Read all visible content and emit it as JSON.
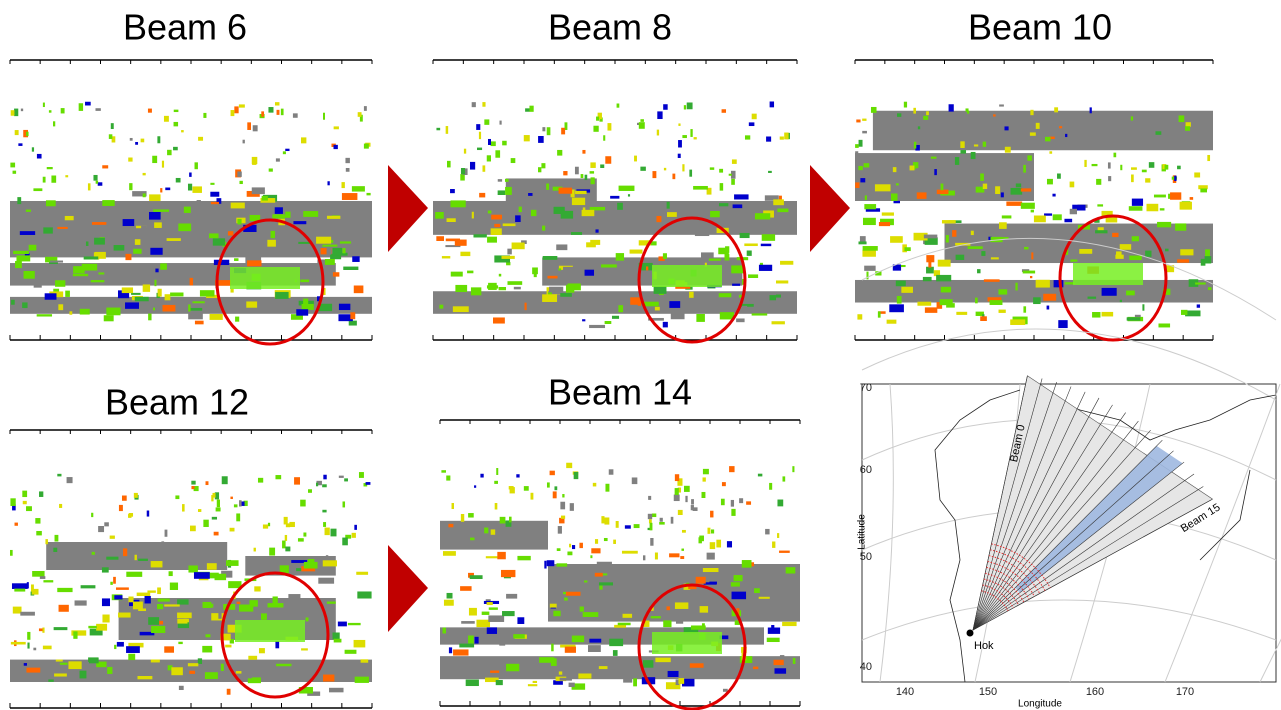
{
  "panels": [
    {
      "title": "Beam 6"
    },
    {
      "title": "Beam 8"
    },
    {
      "title": "Beam 10"
    },
    {
      "title": "Beam 12"
    },
    {
      "title": "Beam 14"
    }
  ],
  "map": {
    "y_axis_label": "Latitude",
    "x_axis_label": "Longitude",
    "y_ticks": [
      "70",
      "60",
      "50",
      "40"
    ],
    "x_ticks": [
      "140",
      "150",
      "160",
      "170"
    ],
    "labels": [
      "Beam 0",
      "Beam 15",
      "Hok"
    ]
  }
}
